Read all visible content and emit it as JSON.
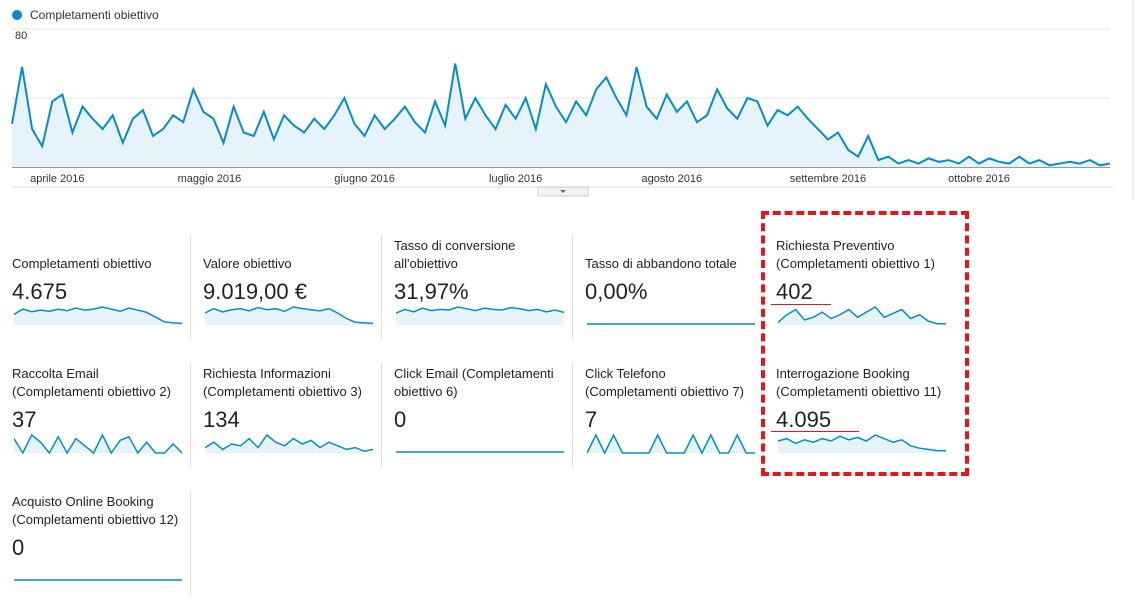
{
  "chart_data": {
    "type": "line",
    "series": [
      {
        "name": "Completamenti obiettivo",
        "color": "#058dc7",
        "values": [
          25,
          58,
          22,
          12,
          38,
          42,
          20,
          35,
          28,
          22,
          30,
          14,
          28,
          33,
          18,
          22,
          30,
          26,
          45,
          32,
          28,
          14,
          35,
          20,
          18,
          32,
          16,
          30,
          24,
          20,
          28,
          22,
          30,
          40,
          25,
          18,
          30,
          22,
          28,
          35,
          26,
          20,
          38,
          24,
          60,
          28,
          40,
          30,
          22,
          36,
          28,
          40,
          22,
          48,
          35,
          26,
          38,
          30,
          45,
          52,
          40,
          30,
          58,
          35,
          28,
          42,
          32,
          38,
          26,
          30,
          45,
          34,
          28,
          40,
          38,
          24,
          33,
          30,
          35,
          28,
          22,
          16,
          20,
          10,
          6,
          18,
          4,
          6,
          2,
          4,
          2,
          5,
          3,
          4,
          2,
          6,
          2,
          5,
          3,
          2,
          6,
          2,
          4,
          1,
          2,
          3,
          2,
          4,
          1,
          2
        ]
      }
    ],
    "ylim": [
      0,
      80
    ],
    "yticks": [
      40,
      80
    ],
    "xlim": [
      0,
      109
    ],
    "xticks": [
      {
        "value": 4.5,
        "label": "aprile 2016"
      },
      {
        "value": 19.6,
        "label": "maggio 2016"
      },
      {
        "value": 35,
        "label": "giugno 2016"
      },
      {
        "value": 50,
        "label": "luglio 2016"
      },
      {
        "value": 65.5,
        "label": "agosto 2016"
      },
      {
        "value": 81,
        "label": "settembre 2016"
      },
      {
        "value": 96,
        "label": "ottobre 2016"
      }
    ],
    "grid": true
  },
  "tiles": [
    {
      "title": "Completamenti obiettivo",
      "value": "4.675",
      "spark": [
        20,
        30,
        25,
        28,
        26,
        30,
        27,
        32,
        28,
        30,
        34,
        30,
        26,
        32,
        28,
        24,
        15,
        6,
        4,
        3
      ]
    },
    {
      "title": "Valore obiettivo",
      "value": "9.019,00 €",
      "spark": [
        22,
        30,
        24,
        28,
        30,
        26,
        32,
        28,
        30,
        25,
        33,
        30,
        28,
        26,
        30,
        22,
        12,
        5,
        4,
        3
      ]
    },
    {
      "title": "Tasso di conversione all'obiettivo",
      "value": "31,97%",
      "spark": [
        20,
        26,
        22,
        28,
        24,
        26,
        25,
        30,
        27,
        24,
        28,
        26,
        25,
        29,
        27,
        24,
        26,
        22,
        25,
        21
      ]
    },
    {
      "title": "Tasso di abbandono totale",
      "value": "0,00%",
      "spark": [
        0,
        0,
        0,
        0,
        0,
        0,
        0,
        0,
        0,
        0,
        0,
        0,
        0,
        0,
        0,
        0,
        0,
        0,
        0,
        0
      ]
    },
    {
      "title": "Richiesta Preventivo (Completamenti obiettivo 1)",
      "value": "402",
      "spark": [
        2,
        8,
        12,
        4,
        6,
        10,
        5,
        8,
        12,
        6,
        10,
        14,
        6,
        9,
        12,
        5,
        8,
        3,
        1,
        1
      ]
    },
    {
      "title": "Raccolta Email (Completamenti obiettivo 2)",
      "value": "37",
      "spark": [
        8,
        0,
        10,
        6,
        0,
        9,
        0,
        8,
        4,
        0,
        10,
        0,
        7,
        9,
        0,
        6,
        0,
        0,
        5,
        0
      ]
    },
    {
      "title": "Richiesta Informazioni (Completamenti obiettivo 3)",
      "value": "134",
      "spark": [
        3,
        6,
        2,
        5,
        4,
        8,
        3,
        10,
        6,
        4,
        8,
        5,
        7,
        3,
        6,
        4,
        2,
        3,
        1,
        2
      ]
    },
    {
      "title": "Click Email (Completamenti obiettivo 6)",
      "value": "0",
      "spark": [
        0,
        0,
        0,
        0,
        0,
        0,
        0,
        0,
        0,
        0,
        0,
        0,
        0,
        0,
        0,
        0,
        0,
        0,
        0,
        0
      ]
    },
    {
      "title": "Click Telefono (Completamenti obiettivo 7)",
      "value": "7",
      "spark": [
        0,
        10,
        0,
        10,
        0,
        0,
        0,
        0,
        10,
        0,
        0,
        0,
        10,
        0,
        10,
        0,
        0,
        10,
        0,
        0
      ]
    },
    {
      "title": "Interrogazione Booking (Completamenti obiettivo 11)",
      "value": "4.095",
      "spark": [
        10,
        12,
        8,
        11,
        9,
        12,
        10,
        14,
        11,
        13,
        10,
        15,
        12,
        9,
        11,
        6,
        4,
        3,
        2,
        2
      ]
    },
    {
      "title": "Acquisto Online Booking (Completamenti obiettivo 12)",
      "value": "0",
      "spark": [
        0,
        0,
        0,
        0,
        0,
        0,
        0,
        0,
        0,
        0,
        0,
        0,
        0,
        0,
        0,
        0,
        0,
        0,
        0,
        0
      ]
    }
  ]
}
